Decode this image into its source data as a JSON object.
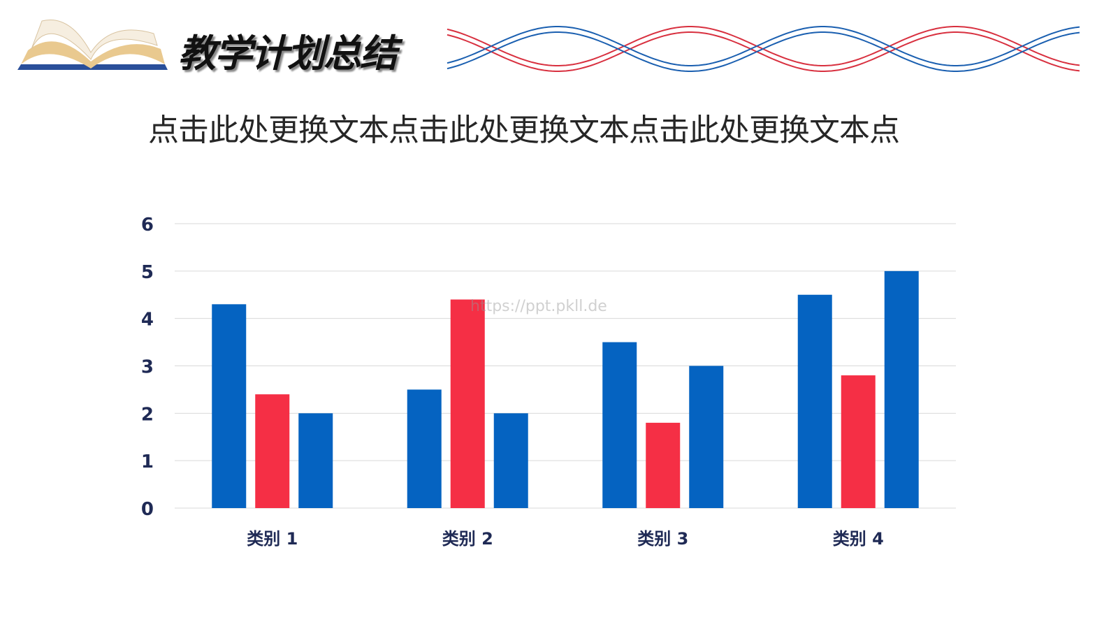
{
  "header": {
    "title": "教学计划总结",
    "book_icon": "open-book-icon",
    "wave_colors": [
      "#d8303f",
      "#1a5fb0"
    ]
  },
  "subtitle": "点击此处更换文本点击此处更换文本点击此处更换文本点",
  "watermark": "https://ppt.pkll.de",
  "chart_data": {
    "type": "bar",
    "categories": [
      "类别 1",
      "类别 2",
      "类别 3",
      "类别 4"
    ],
    "series": [
      {
        "values": [
          4.3,
          2.5,
          3.5,
          4.5
        ],
        "color": "#0563c1"
      },
      {
        "values": [
          2.4,
          4.4,
          1.8,
          2.8
        ],
        "color": "#f52f45"
      },
      {
        "values": [
          2,
          2,
          3,
          5
        ],
        "color": "#0563c1"
      }
    ],
    "yticks": [
      "0",
      "1",
      "2",
      "3",
      "4",
      "5",
      "6"
    ],
    "ylim": [
      0,
      6
    ],
    "grid": true,
    "legend": "none"
  }
}
